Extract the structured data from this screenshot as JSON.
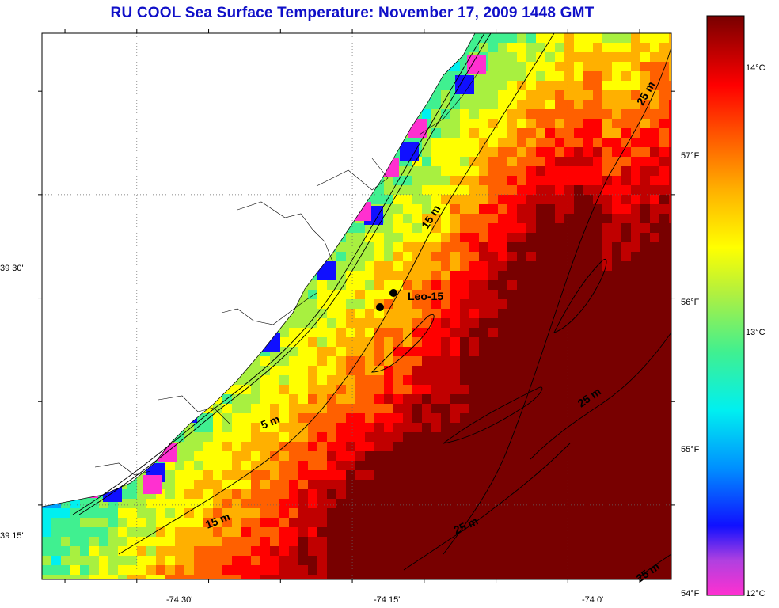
{
  "title": "RU COOL  Sea Surface Temperature:  November 17, 2009 1448 GMT",
  "map": {
    "lon_ticks": [
      {
        "label": "-74 30'",
        "lon": -74.5
      },
      {
        "label": "-74 15'",
        "lon": -74.25
      },
      {
        "label": "-74 0'",
        "lon": -74.0
      }
    ],
    "lat_ticks": [
      {
        "label": "39 30'",
        "lat": 39.5
      },
      {
        "label": "39 15'",
        "lat": 39.25
      }
    ],
    "lon_range": [
      -74.61,
      -73.88
    ],
    "lat_range": [
      39.19,
      39.63
    ],
    "grid": "dotted",
    "station": {
      "label": "Leo-15"
    },
    "depth_contours": [
      {
        "label": "5 m"
      },
      {
        "label": "15 m"
      },
      {
        "label": "15 m"
      },
      {
        "label": "25 m"
      },
      {
        "label": "25 m"
      },
      {
        "label": "25 m"
      },
      {
        "label": "25 m"
      }
    ]
  },
  "colorbar": {
    "celsius_labels": [
      {
        "label": "14°C",
        "value": 14
      },
      {
        "label": "13°C",
        "value": 13
      },
      {
        "label": "12°C",
        "value": 12
      }
    ],
    "fahrenheit_labels": [
      {
        "label": "57°F",
        "value": 57
      },
      {
        "label": "56°F",
        "value": 56
      },
      {
        "label": "55°F",
        "value": 55
      },
      {
        "label": "54°F",
        "value": 54
      }
    ],
    "colors": [
      "#ff30d0",
      "#a040e0",
      "#1010ff",
      "#00a0ff",
      "#00f0f0",
      "#40f090",
      "#a8f040",
      "#ffff00",
      "#ffb000",
      "#ff6000",
      "#ff0000",
      "#c00000",
      "#780000"
    ]
  }
}
